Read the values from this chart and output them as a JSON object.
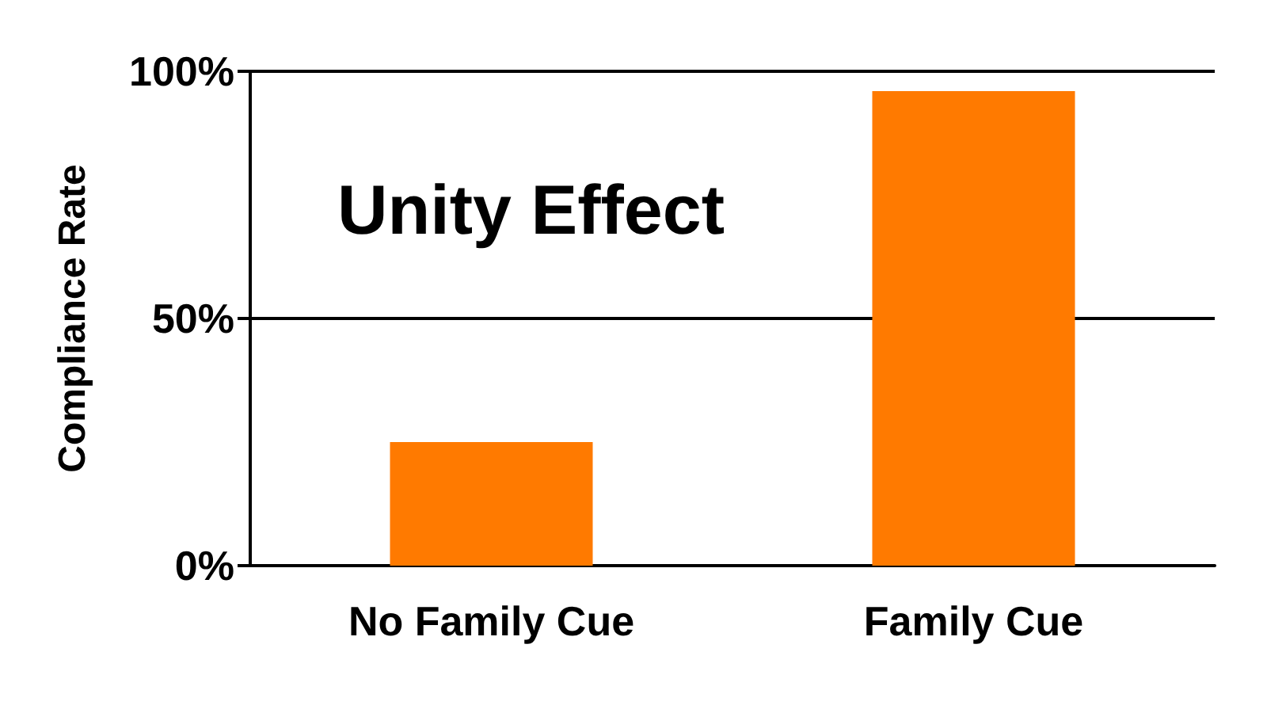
{
  "chart_data": {
    "type": "bar",
    "title": "Unity Effect",
    "ylabel": "Compliance Rate",
    "categories": [
      "No Family Cue",
      "Family Cue"
    ],
    "values": [
      25,
      96
    ],
    "color": "#ff7a00",
    "ylim": [
      0,
      100
    ],
    "yticks": [
      {
        "value": 0,
        "label": "0%"
      },
      {
        "value": 50,
        "label": "50%"
      },
      {
        "value": 100,
        "label": "100%"
      }
    ],
    "grid": "y"
  }
}
